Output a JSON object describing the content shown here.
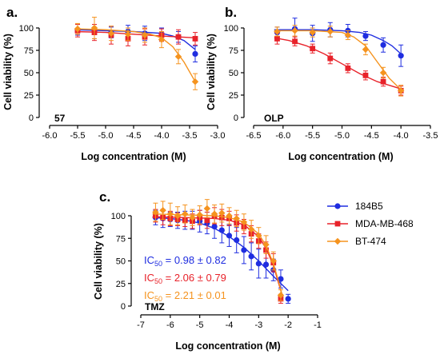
{
  "colors": {
    "184B5": "#1f2de0",
    "MDA-MB-468": "#e8222a",
    "BT-474": "#f5931e"
  },
  "chart_data": [
    {
      "type": "line",
      "panel_label": "a.",
      "compound_label": "57",
      "xlabel": "Log concentration (M)",
      "ylabel": "Cell viability (%)",
      "xlim": [
        -6.0,
        -3.0
      ],
      "ylim": [
        0,
        100
      ],
      "xticks": [
        "-6.0",
        "-5.5",
        "-5.0",
        "-4.5",
        "-4.0",
        "-3.5",
        "-3.0"
      ],
      "yticks": [
        "0",
        "25",
        "50",
        "75",
        "100"
      ],
      "series": [
        {
          "key": "184B5",
          "marker": "circle",
          "x": [
            -5.5,
            -5.2,
            -4.9,
            -4.6,
            -4.3,
            -4.0,
            -3.7,
            -3.4
          ],
          "y": [
            98,
            96,
            95,
            96,
            94,
            93,
            90,
            71
          ],
          "err": [
            6,
            8,
            6,
            7,
            8,
            7,
            6,
            9
          ],
          "fit_x": [
            -5.55,
            -5.0,
            -4.5,
            -4.0,
            -3.8,
            -3.6,
            -3.4
          ],
          "fit_y": [
            98,
            97,
            96,
            94,
            91,
            86,
            76
          ]
        },
        {
          "key": "MDA-MB-468",
          "marker": "square",
          "x": [
            -5.5,
            -5.2,
            -4.9,
            -4.6,
            -4.3,
            -4.0,
            -3.7,
            -3.4
          ],
          "y": [
            97,
            95,
            92,
            88,
            90,
            92,
            90,
            88
          ],
          "err": [
            7,
            9,
            10,
            8,
            9,
            7,
            8,
            7
          ],
          "fit_x": [
            -5.55,
            -5.0,
            -4.5,
            -4.0,
            -3.4
          ],
          "fit_y": [
            96,
            95,
            93,
            91,
            89
          ]
        },
        {
          "key": "BT-474",
          "marker": "diamond",
          "x": [
            -5.5,
            -5.2,
            -4.9,
            -4.6,
            -4.3,
            -4.0,
            -3.7,
            -3.4
          ],
          "y": [
            99,
            100,
            94,
            93,
            92,
            87,
            68,
            40
          ],
          "err": [
            6,
            12,
            8,
            7,
            8,
            9,
            8,
            9
          ],
          "fit_x": [
            -5.55,
            -5.0,
            -4.5,
            -4.2,
            -4.0,
            -3.8,
            -3.6,
            -3.4
          ],
          "fit_y": [
            99,
            98,
            96,
            93,
            89,
            79,
            62,
            40
          ]
        }
      ]
    },
    {
      "type": "line",
      "panel_label": "b.",
      "compound_label": "OLP",
      "xlabel": "Log concentration (M)",
      "ylabel": "Cell viability (%)",
      "xlim": [
        -6.5,
        -3.5
      ],
      "ylim": [
        0,
        100
      ],
      "xticks": [
        "-6.5",
        "-6.0",
        "-5.5",
        "-5.0",
        "-4.5",
        "-4.0",
        "-3.5"
      ],
      "yticks": [
        "0",
        "25",
        "50",
        "75",
        "100"
      ],
      "series": [
        {
          "key": "184B5",
          "marker": "circle",
          "x": [
            -6.1,
            -5.8,
            -5.5,
            -5.2,
            -4.9,
            -4.6,
            -4.3,
            -4.0
          ],
          "y": [
            95,
            99,
            94,
            98,
            97,
            91,
            81,
            69
          ],
          "err": [
            6,
            12,
            9,
            8,
            7,
            5,
            8,
            12
          ],
          "fit_x": [
            -6.15,
            -5.5,
            -5.0,
            -4.7,
            -4.5,
            -4.3,
            -4.15,
            -4.0
          ],
          "fit_y": [
            98,
            98,
            97,
            95,
            92,
            86,
            80,
            71
          ]
        },
        {
          "key": "MDA-MB-468",
          "marker": "square",
          "x": [
            -6.1,
            -5.8,
            -5.5,
            -5.2,
            -4.9,
            -4.6,
            -4.3,
            -4.0
          ],
          "y": [
            88,
            85,
            77,
            66,
            55,
            47,
            40,
            30
          ],
          "err": [
            6,
            5,
            5,
            6,
            5,
            5,
            5,
            5
          ],
          "fit_x": [
            -6.15,
            -5.9,
            -5.6,
            -5.3,
            -5.0,
            -4.7,
            -4.4,
            -4.0
          ],
          "fit_y": [
            89,
            86,
            80,
            71,
            60,
            49,
            40,
            32
          ]
        },
        {
          "key": "BT-474",
          "marker": "diamond",
          "x": [
            -6.1,
            -5.8,
            -5.5,
            -5.2,
            -4.9,
            -4.6,
            -4.3,
            -4.0
          ],
          "y": [
            96,
            97,
            95,
            96,
            92,
            76,
            50,
            30
          ],
          "err": [
            5,
            6,
            5,
            6,
            5,
            6,
            6,
            6
          ],
          "fit_x": [
            -6.15,
            -5.5,
            -5.0,
            -4.8,
            -4.6,
            -4.4,
            -4.2,
            -4.0
          ],
          "fit_y": [
            97,
            97,
            95,
            90,
            80,
            62,
            44,
            31
          ]
        }
      ]
    },
    {
      "type": "line",
      "panel_label": "c.",
      "compound_label": "TMZ",
      "xlabel": "Log concentration (M)",
      "ylabel": "Cell viability (%)",
      "xlim": [
        -7,
        -1
      ],
      "ylim": [
        0,
        100
      ],
      "xticks": [
        "-7",
        "-6",
        "-5",
        "-4",
        "-3",
        "-2",
        "-1"
      ],
      "yticks": [
        "0",
        "25",
        "50",
        "75",
        "100"
      ],
      "legend": [
        "184B5",
        "MDA-MB-468",
        "BT-474"
      ],
      "legend_position": "top-right",
      "annotations": [
        {
          "key": "184B5",
          "prefix": "IC",
          "sub": "50",
          "text": " = 0.98 ± 0.82"
        },
        {
          "key": "MDA-MB-468",
          "prefix": "IC",
          "sub": "50",
          "text": " = 2.06 ± 0.79"
        },
        {
          "key": "BT-474",
          "prefix": "IC",
          "sub": "50",
          "text": " = 2.21 ± 0.01"
        }
      ],
      "series": [
        {
          "key": "184B5",
          "marker": "circle",
          "x": [
            -6.5,
            -6.25,
            -6.0,
            -5.75,
            -5.5,
            -5.25,
            -5.0,
            -4.75,
            -4.5,
            -4.25,
            -4.0,
            -3.75,
            -3.5,
            -3.25,
            -3.0,
            -2.75,
            -2.5,
            -2.25,
            -2.0
          ],
          "y": [
            98,
            97,
            96,
            95,
            95,
            95,
            94,
            92,
            88,
            84,
            78,
            73,
            62,
            55,
            47,
            46,
            40,
            30,
            8
          ],
          "err": [
            8,
            10,
            8,
            9,
            10,
            10,
            12,
            12,
            13,
            14,
            12,
            14,
            15,
            15,
            16,
            15,
            12,
            10,
            5
          ],
          "fit_x": [
            -6.6,
            -6.0,
            -5.5,
            -5.0,
            -4.5,
            -4.0,
            -3.5,
            -3.0,
            -2.5,
            -2.0
          ],
          "fit_y": [
            98,
            97,
            95,
            92,
            86,
            77,
            65,
            50,
            33,
            17
          ]
        },
        {
          "key": "MDA-MB-468",
          "marker": "square",
          "x": [
            -6.5,
            -6.25,
            -6.0,
            -5.75,
            -5.5,
            -5.25,
            -5.0,
            -4.75,
            -4.5,
            -4.25,
            -4.0,
            -3.75,
            -3.5,
            -3.25,
            -3.0,
            -2.75,
            -2.5,
            -2.25
          ],
          "y": [
            100,
            98,
            97,
            96,
            95,
            94,
            98,
            95,
            100,
            98,
            97,
            92,
            88,
            80,
            72,
            62,
            48,
            8
          ],
          "err": [
            7,
            8,
            8,
            7,
            7,
            8,
            8,
            9,
            9,
            9,
            8,
            9,
            8,
            9,
            8,
            9,
            10,
            5
          ],
          "fit_x": [
            -6.6,
            -5.5,
            -4.5,
            -4.0,
            -3.5,
            -3.0,
            -2.75,
            -2.5,
            -2.35,
            -2.2
          ],
          "fit_y": [
            99,
            98,
            97,
            95,
            90,
            77,
            64,
            45,
            28,
            12
          ]
        },
        {
          "key": "BT-474",
          "marker": "diamond",
          "x": [
            -6.5,
            -6.25,
            -6.0,
            -5.75,
            -5.5,
            -5.25,
            -5.0,
            -4.75,
            -4.5,
            -4.25,
            -4.0,
            -3.75,
            -3.5,
            -3.25,
            -3.0,
            -2.75,
            -2.5,
            -2.25
          ],
          "y": [
            104,
            106,
            102,
            100,
            102,
            98,
            101,
            108,
            102,
            103,
            100,
            97,
            93,
            85,
            78,
            68,
            50,
            12
          ],
          "err": [
            10,
            10,
            12,
            10,
            10,
            9,
            10,
            10,
            10,
            10,
            9,
            9,
            9,
            10,
            9,
            10,
            10,
            6
          ],
          "fit_x": [
            -6.6,
            -5.5,
            -4.5,
            -4.0,
            -3.5,
            -3.0,
            -2.75,
            -2.5,
            -2.35,
            -2.2
          ],
          "fit_y": [
            102,
            101,
            100,
            98,
            93,
            80,
            67,
            47,
            30,
            12
          ]
        }
      ]
    }
  ]
}
